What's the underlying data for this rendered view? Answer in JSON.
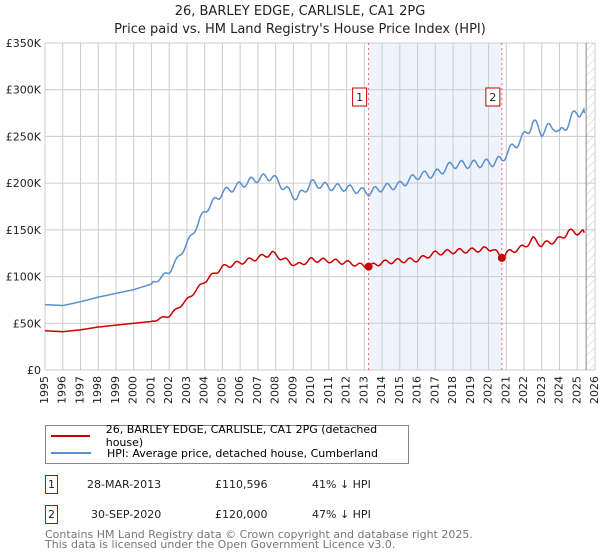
{
  "title": "26, BARLEY EDGE, CARLISLE, CA1 2PG",
  "subtitle": "Price paid vs. HM Land Registry's House Price Index (HPI)",
  "chart_data": {
    "type": "line",
    "xlim": [
      1995,
      2026
    ],
    "ylim": [
      0,
      350000
    ],
    "x_ticks": [
      "1995",
      "1996",
      "1997",
      "1998",
      "1999",
      "2000",
      "2001",
      "2002",
      "2003",
      "2004",
      "2005",
      "2006",
      "2007",
      "2008",
      "2009",
      "2010",
      "2011",
      "2012",
      "2013",
      "2014",
      "2015",
      "2016",
      "2017",
      "2018",
      "2019",
      "2020",
      "2021",
      "2022",
      "2023",
      "2024",
      "2025",
      "2026"
    ],
    "y_ticks": [
      {
        "v": 0,
        "label": "£0"
      },
      {
        "v": 50000,
        "label": "£50K"
      },
      {
        "v": 100000,
        "label": "£100K"
      },
      {
        "v": 150000,
        "label": "£150K"
      },
      {
        "v": 200000,
        "label": "£200K"
      },
      {
        "v": 250000,
        "label": "£250K"
      },
      {
        "v": 300000,
        "label": "£300K"
      },
      {
        "v": 350000,
        "label": "£350K"
      }
    ],
    "series": [
      {
        "name": "26, BARLEY EDGE, CARLISLE, CA1 2PG (detached house)",
        "color": "#cc0000",
        "x": [
          1995,
          1996,
          1997,
          1998,
          1999,
          2000,
          2001,
          2002,
          2003,
          2004,
          2005,
          2006,
          2007,
          2007.8,
          2008.5,
          2009.2,
          2010,
          2011,
          2012,
          2013.24,
          2014,
          2015,
          2016,
          2017,
          2018,
          2019,
          2020.2,
          2020.75,
          2021,
          2022,
          2022.5,
          2023,
          2024,
          2024.5,
          2025.4
        ],
        "y": [
          42000,
          41000,
          43000,
          46000,
          48000,
          50000,
          52000,
          58000,
          75000,
          95000,
          110000,
          115000,
          120000,
          125000,
          118000,
          112000,
          118000,
          117000,
          115000,
          110596,
          115000,
          117000,
          118000,
          125000,
          127000,
          128000,
          130000,
          120000,
          125000,
          132000,
          140000,
          134000,
          140000,
          148000,
          147000
        ]
      },
      {
        "name": "HPI: Average price, detached house, Cumberland",
        "color": "#5b8fd0",
        "x": [
          1995,
          1996,
          1997,
          1998,
          1999,
          2000,
          2001,
          2002,
          2003,
          2004,
          2005,
          2006,
          2007,
          2007.8,
          2008.5,
          2009.2,
          2010,
          2011,
          2012,
          2013.24,
          2014,
          2015,
          2016,
          2017,
          2018,
          2019,
          2020.2,
          2020.75,
          2021,
          2022,
          2022.5,
          2023,
          2023.7,
          2024,
          2024.5,
          2025,
          2025.4
        ],
        "y": [
          70000,
          69000,
          73000,
          78000,
          82000,
          86000,
          92000,
          105000,
          135000,
          170000,
          190000,
          198000,
          205000,
          207000,
          195000,
          184000,
          200000,
          196000,
          195000,
          190000,
          195000,
          198000,
          208000,
          210000,
          220000,
          220000,
          222000,
          225000,
          232000,
          250000,
          265000,
          255000,
          262000,
          252000,
          265000,
          277000,
          275000
        ]
      }
    ],
    "annotations": [
      {
        "label": "1",
        "x": 2013.24,
        "y": 110596
      },
      {
        "label": "2",
        "x": 2020.75,
        "y": 120000
      }
    ],
    "hatch_from": 2025.5
  },
  "legend": [
    "26, BARLEY EDGE, CARLISLE, CA1 2PG (detached house)",
    "HPI: Average price, detached house, Cumberland"
  ],
  "transactions": [
    {
      "num": "1",
      "date": "28-MAR-2013",
      "price": "£110,596",
      "hpi": "41% ↓ HPI"
    },
    {
      "num": "2",
      "date": "30-SEP-2020",
      "price": "£120,000",
      "hpi": "47% ↓ HPI"
    }
  ],
  "footer": [
    "Contains HM Land Registry data © Crown copyright and database right 2025.",
    "This data is licensed under the Open Government Licence v3.0."
  ]
}
